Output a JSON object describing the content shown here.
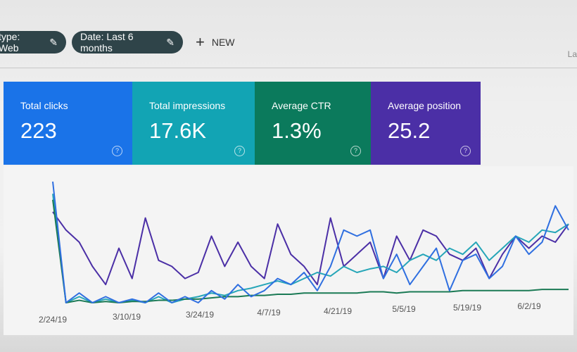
{
  "toolbar": {
    "filters": [
      {
        "label": "type: Web",
        "icon": "pencil-icon"
      },
      {
        "label": "Date: Last 6 months",
        "icon": "pencil-icon"
      }
    ],
    "new_label": "NEW",
    "right_partial": "La"
  },
  "cards": [
    {
      "label": "Total clicks",
      "value": "223",
      "color": "#1a73e8"
    },
    {
      "label": "Total impressions",
      "value": "17.6K",
      "color": "#12a4b4"
    },
    {
      "label": "Average CTR",
      "value": "1.3%",
      "color": "#0b7a5c"
    },
    {
      "label": "Average position",
      "value": "25.2",
      "color": "#4b2fa6"
    }
  ],
  "chart_data": {
    "type": "line",
    "x_tick_labels": [
      "2/24/19",
      "3/10/19",
      "3/24/19",
      "4/7/19",
      "4/21/19",
      "5/5/19",
      "5/19/19",
      "6/2/19"
    ],
    "y_axis_visible": false,
    "grid": false,
    "series": [
      {
        "metric": "Average position",
        "color": "#4b2fa6",
        "values": [
          75,
          60,
          50,
          30,
          15,
          45,
          20,
          70,
          35,
          30,
          20,
          25,
          55,
          30,
          50,
          30,
          20,
          65,
          40,
          30,
          15,
          70,
          30,
          40,
          50,
          20,
          55,
          35,
          60,
          55,
          40,
          35,
          45,
          20,
          40,
          55,
          45,
          55,
          50,
          65
        ]
      },
      {
        "metric": "Total impressions",
        "color": "#26a6b8",
        "values": [
          90,
          0,
          5,
          0,
          3,
          0,
          2,
          0,
          5,
          0,
          3,
          5,
          8,
          6,
          10,
          12,
          15,
          18,
          15,
          20,
          25,
          22,
          30,
          25,
          28,
          30,
          25,
          35,
          40,
          35,
          45,
          40,
          50,
          35,
          45,
          55,
          50,
          60,
          58,
          65
        ]
      },
      {
        "metric": "Average CTR",
        "color": "#1b7a55",
        "values": [
          85,
          0,
          2,
          0,
          1,
          0,
          1,
          1,
          2,
          2,
          3,
          3,
          4,
          5,
          5,
          6,
          6,
          7,
          7,
          8,
          8,
          8,
          8,
          8,
          9,
          9,
          8,
          9,
          9,
          9,
          9,
          10,
          10,
          10,
          10,
          10,
          10,
          11,
          11,
          11
        ]
      },
      {
        "metric": "Total clicks",
        "color": "#2f6fe0",
        "values": [
          100,
          0,
          8,
          0,
          5,
          0,
          3,
          0,
          8,
          0,
          5,
          0,
          10,
          3,
          15,
          5,
          10,
          20,
          15,
          25,
          10,
          30,
          60,
          55,
          60,
          20,
          40,
          15,
          30,
          45,
          10,
          35,
          40,
          20,
          30,
          55,
          40,
          50,
          80,
          60
        ]
      }
    ]
  }
}
